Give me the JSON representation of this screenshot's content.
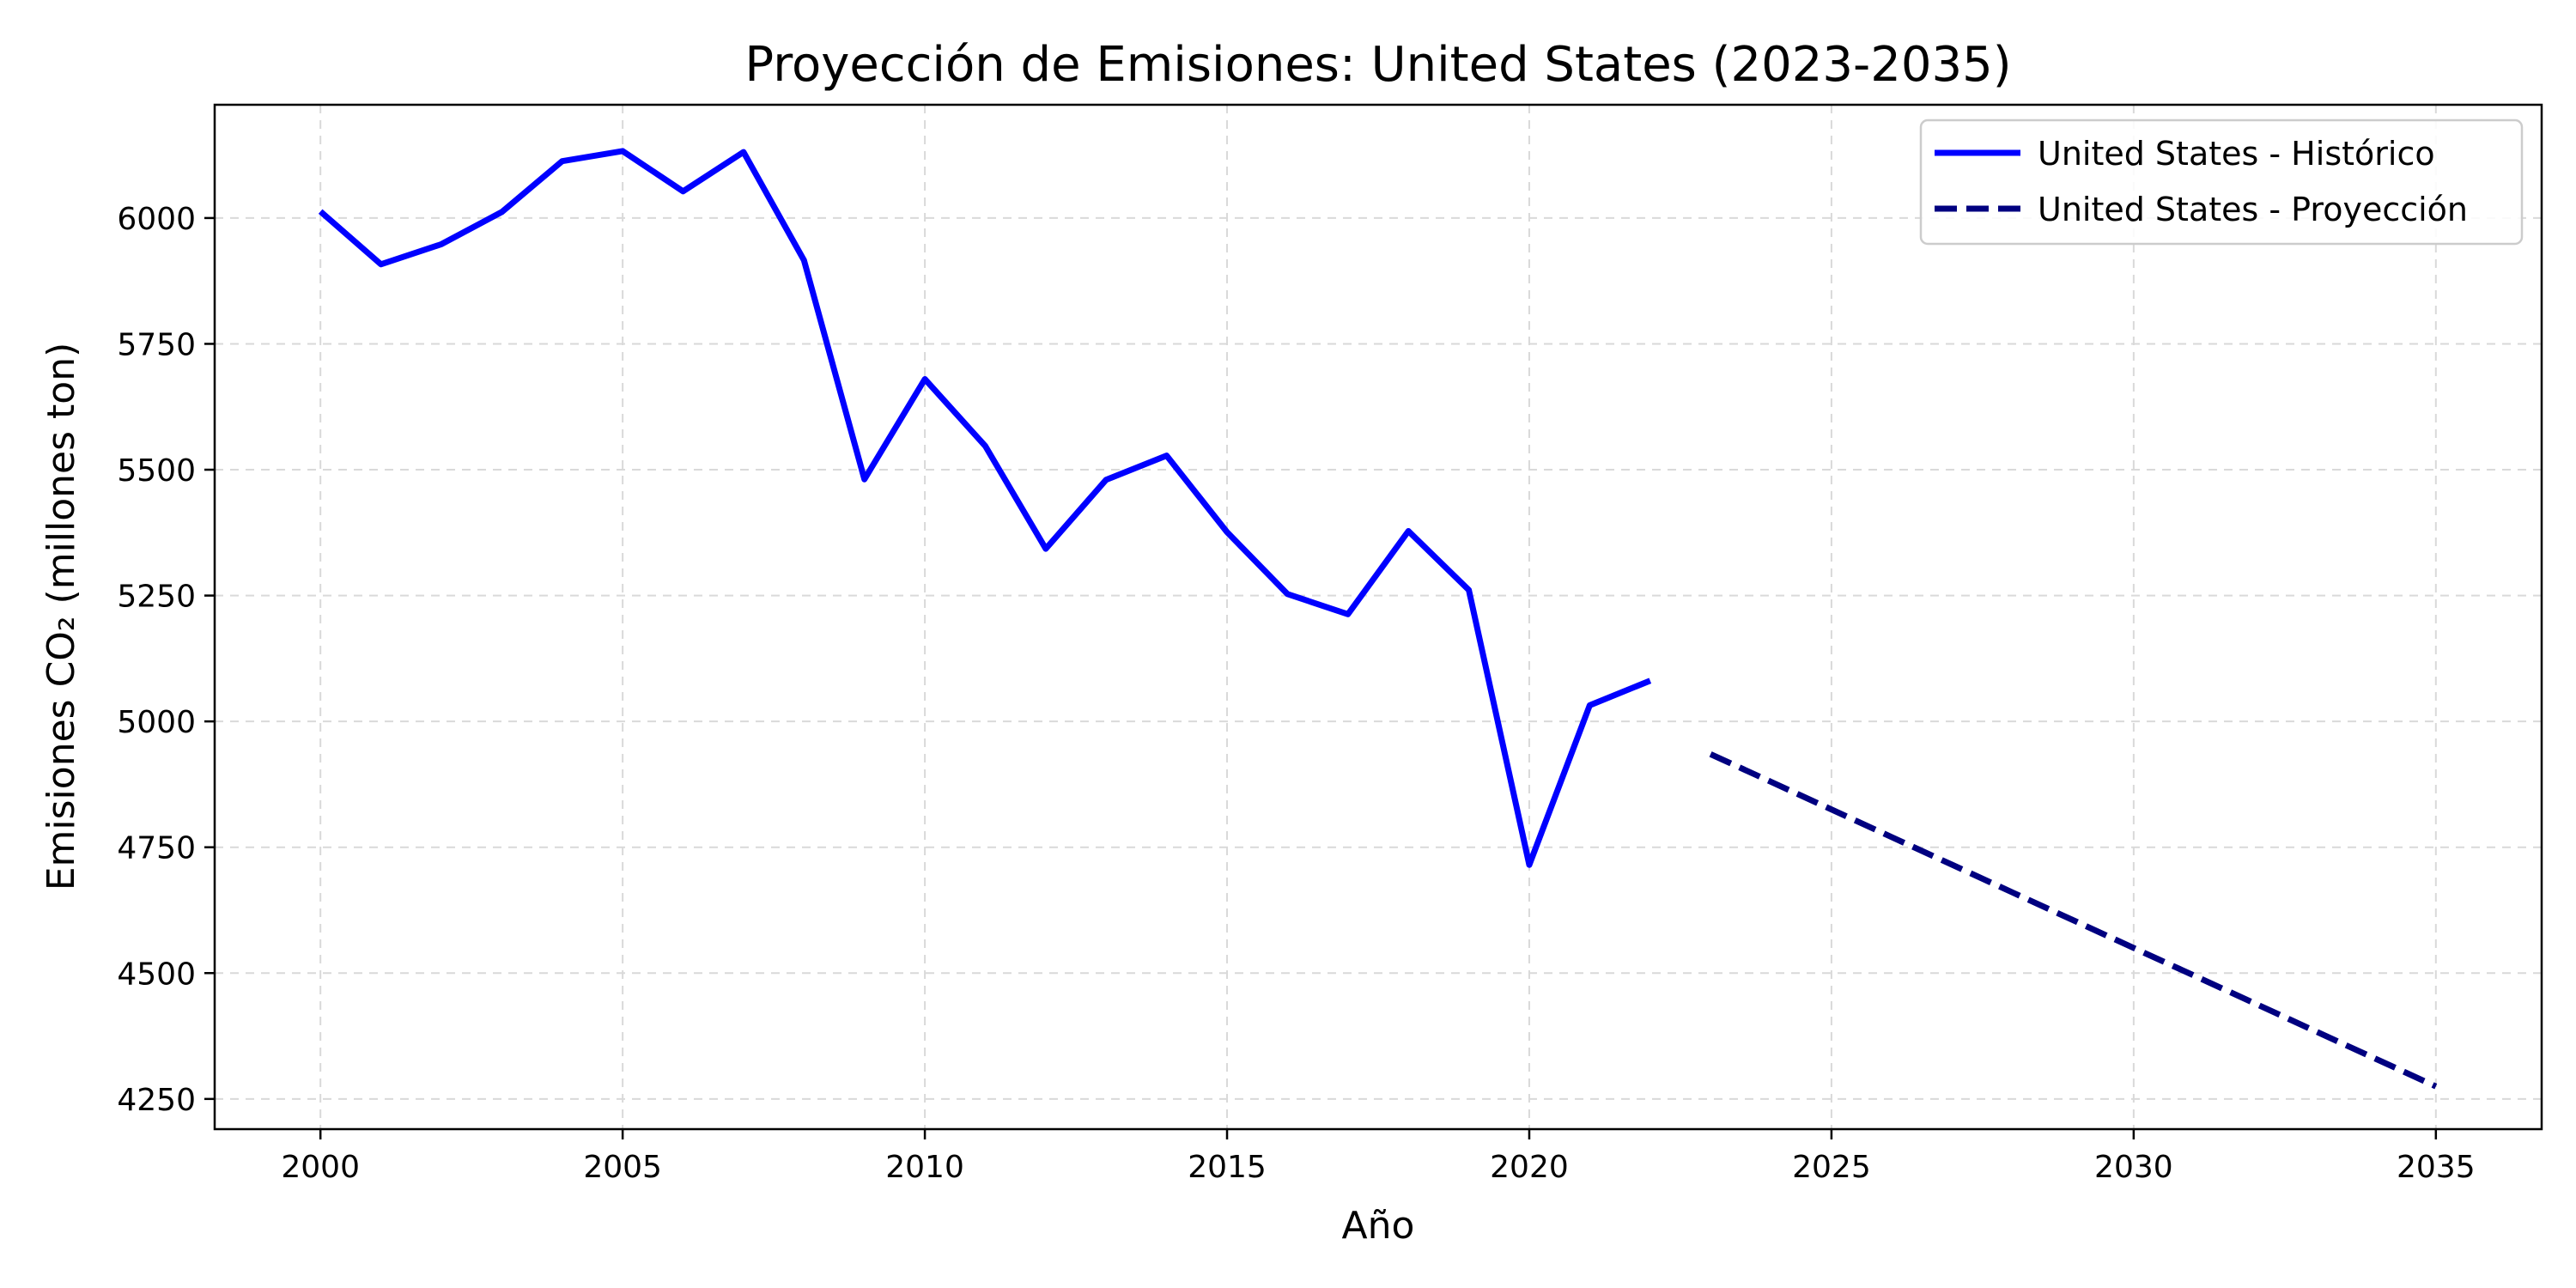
{
  "chart_data": {
    "type": "line",
    "title": "Proyección de Emisiones: United States (2023-2035)",
    "xlabel": "Año",
    "ylabel": "Emisiones CO₂ (millones ton)",
    "xlim": [
      1998.25,
      2036.75
    ],
    "ylim": [
      4190,
      6225
    ],
    "xticks": [
      2000,
      2005,
      2010,
      2015,
      2020,
      2025,
      2030,
      2035
    ],
    "yticks": [
      4250,
      4500,
      4750,
      5000,
      5250,
      5500,
      5750,
      6000
    ],
    "grid": true,
    "legend_position": "top-right",
    "series": [
      {
        "name": "United States - Histórico",
        "style": "solid",
        "color": "#0000ff",
        "x": [
          2000,
          2001,
          2002,
          2003,
          2004,
          2005,
          2006,
          2007,
          2008,
          2009,
          2010,
          2011,
          2012,
          2013,
          2014,
          2015,
          2016,
          2017,
          2018,
          2019,
          2020,
          2021,
          2022
        ],
        "y": [
          6013,
          5908,
          5948,
          6012,
          6113,
          6133,
          6053,
          6131,
          5916,
          5481,
          5680,
          5547,
          5343,
          5480,
          5528,
          5376,
          5253,
          5213,
          5378,
          5261,
          4715,
          5032,
          5081
        ]
      },
      {
        "name": "United States - Proyección",
        "style": "dashed",
        "color": "#000080",
        "x": [
          2023,
          2024,
          2025,
          2026,
          2027,
          2028,
          2029,
          2030,
          2031,
          2032,
          2033,
          2034,
          2035
        ],
        "y": [
          4935,
          4880,
          4825,
          4770,
          4715,
          4660,
          4605,
          4550,
          4495,
          4440,
          4385,
          4330,
          4275
        ]
      }
    ]
  }
}
